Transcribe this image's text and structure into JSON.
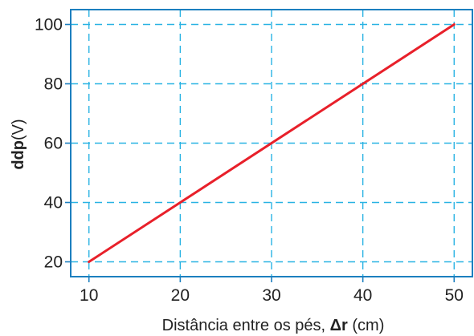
{
  "chart_data": {
    "type": "line",
    "title": "",
    "xlabel": {
      "before": "Distância entre os pés, ",
      "bold": "Δr",
      "after": " (cm)"
    },
    "ylabel": {
      "bold": "ddp",
      "after": "(V)"
    },
    "x_ticks": [
      "10",
      "20",
      "30",
      "40",
      "50"
    ],
    "y_ticks": [
      "20",
      "40",
      "60",
      "80",
      "100"
    ],
    "xlim": [
      8,
      52
    ],
    "ylim": [
      15,
      105
    ],
    "grid": true,
    "grid_style": "dashed",
    "series": [
      {
        "x": [
          10,
          50
        ],
        "y": [
          20,
          100
        ]
      }
    ]
  },
  "colors": {
    "line": "#e8202a",
    "grid": "#29b3e3",
    "frame": "#1c7fbf",
    "text": "#222222"
  }
}
